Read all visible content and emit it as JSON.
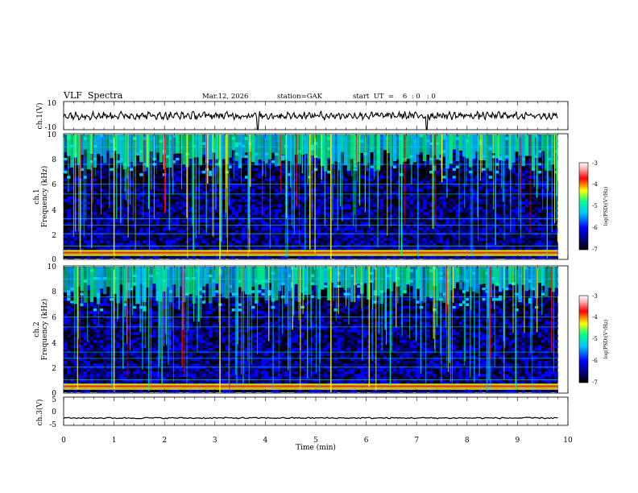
{
  "header": {
    "title": "VLF  Spectra",
    "date": "Mar.12, 2026",
    "station": "station=GAK",
    "start": "start  UT  =    6  : 0   : 0"
  },
  "chart_data": [
    {
      "type": "line",
      "panel": "ch1-waveform",
      "ylabel": "ch.1(V)",
      "ylim": [
        -10,
        10
      ],
      "yticks": [
        "10",
        "-10"
      ],
      "xlim": [
        0,
        10
      ],
      "approx_level": 0,
      "notable_dips_min": [
        3.85,
        7.2
      ]
    },
    {
      "type": "heatmap",
      "panel": "ch1-spectrogram",
      "ylabel": [
        "ch.1",
        "Frequency  (kHz)"
      ],
      "ylim": [
        0,
        10
      ],
      "yticks": [
        "0",
        "2",
        "4",
        "6",
        "8",
        "10"
      ],
      "xlim": [
        0,
        10
      ],
      "colorbar": {
        "label": "log(PSD)(V²/Hz)",
        "range": [
          -7,
          -3
        ],
        "ticks": [
          "-3",
          "-4",
          "-5",
          "-6",
          "-7"
        ]
      }
    },
    {
      "type": "heatmap",
      "panel": "ch2-spectrogram",
      "ylabel": [
        "ch.2",
        "Frequency  (kHz)"
      ],
      "ylim": [
        0,
        10
      ],
      "yticks": [
        "0",
        "2",
        "4",
        "6",
        "8",
        "10"
      ],
      "xlim": [
        0,
        10
      ],
      "colorbar": {
        "label": "log(PSD)(V²/Hz)",
        "range": [
          -7,
          -3
        ],
        "ticks": [
          "-3",
          "-4",
          "-5",
          "-6",
          "-7"
        ]
      }
    },
    {
      "type": "line",
      "panel": "ch3-waveform",
      "ylabel": "ch.3(V)",
      "ylim": [
        -5,
        5
      ],
      "yticks": [
        "5",
        "0",
        "-5"
      ],
      "xlim": [
        0,
        10
      ],
      "approx_level": -2.4
    }
  ],
  "xaxis": {
    "label": "Time  (min)",
    "ticks": [
      "0",
      "1",
      "2",
      "3",
      "4",
      "5",
      "6",
      "7",
      "8",
      "9",
      "10"
    ]
  },
  "colors": {
    "cmap": [
      "#000000",
      "#00007f",
      "#0000ff",
      "#00c8ff",
      "#00ff8c",
      "#ffff00",
      "#ff0000",
      "#ffb0b0",
      "#ffffff"
    ]
  }
}
